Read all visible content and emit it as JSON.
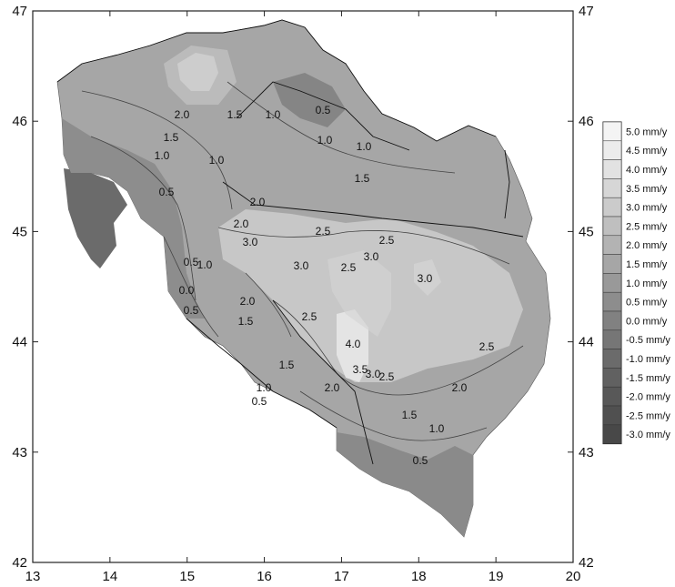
{
  "map": {
    "x_ticks": [
      "13",
      "14",
      "15",
      "16",
      "17",
      "18",
      "19",
      "20"
    ],
    "y_ticks_left": [
      "42",
      "43",
      "44",
      "45",
      "46",
      "47"
    ],
    "y_ticks_right": [
      "42",
      "43",
      "44",
      "45",
      "46",
      "47"
    ],
    "contour_labels": [
      "2.0",
      "1.5",
      "1.0",
      "0.5",
      "1.5",
      "1.0",
      "1.0",
      "0.5",
      "1.0",
      "1.0",
      "1.5",
      "2.0",
      "2.0",
      "2.5",
      "2.5",
      "3.0",
      "3.0",
      "3.0",
      "3.0",
      "2.5",
      "2.0",
      "1.5",
      "0.5",
      "1.0",
      "0.0",
      "0.5",
      "2.5",
      "4.0",
      "3.5",
      "3.0",
      "2.5",
      "2.5",
      "2.0",
      "2.0",
      "1.5",
      "1.0",
      "0.5",
      "1.5",
      "1.0",
      "0.5"
    ]
  },
  "legend": {
    "items": [
      {
        "label": "5.0 mm/y",
        "color": "#f4f4f4"
      },
      {
        "label": "4.5 mm/y",
        "color": "#ececec"
      },
      {
        "label": "4.0 mm/y",
        "color": "#e2e2e2"
      },
      {
        "label": "3.5 mm/y",
        "color": "#d6d6d6"
      },
      {
        "label": "3.0 mm/y",
        "color": "#cbcbcb"
      },
      {
        "label": "2.5 mm/y",
        "color": "#bfbfbf"
      },
      {
        "label": "2.0 mm/y",
        "color": "#b3b3b3"
      },
      {
        "label": "1.5 mm/y",
        "color": "#a6a6a6"
      },
      {
        "label": "1.0 mm/y",
        "color": "#999999"
      },
      {
        "label": "0.5 mm/y",
        "color": "#8d8d8d"
      },
      {
        "label": "0.0 mm/y",
        "color": "#818181"
      },
      {
        "label": "-0.5 mm/y",
        "color": "#767676"
      },
      {
        "label": "-1.0 mm/y",
        "color": "#6b6b6b"
      },
      {
        "label": "-1.5 mm/y",
        "color": "#616161"
      },
      {
        "label": "-2.0 mm/y",
        "color": "#585858"
      },
      {
        "label": "-2.5 mm/y",
        "color": "#505050"
      },
      {
        "label": "-3.0 mm/y",
        "color": "#484848"
      }
    ]
  }
}
